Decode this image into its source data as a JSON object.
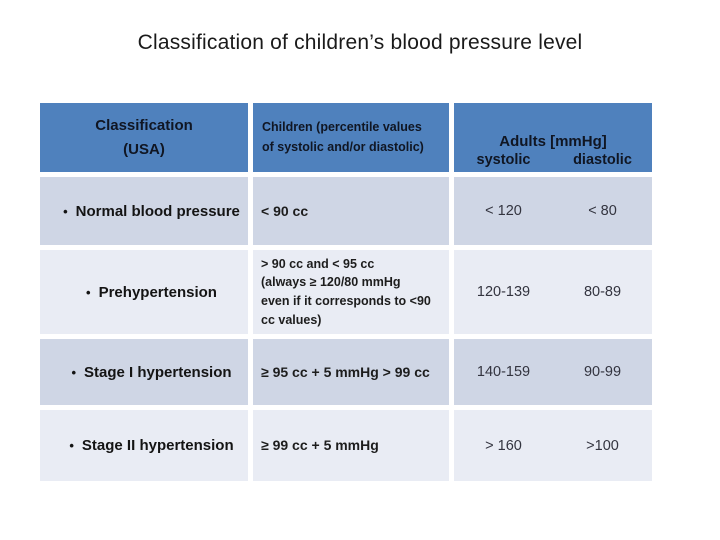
{
  "slide": {
    "title": "Classification of children’s blood pressure level"
  },
  "table": {
    "bullet": "•",
    "header": {
      "classification_line1": "Classification",
      "classification_line2": "(USA)",
      "children_line1": "Children (percentile values",
      "children_line2": "of systolic and/or diastolic)",
      "adults_title": "Adults [mmHg]",
      "adults_sub_systolic": "systolic",
      "adults_sub_diastolic": "diastolic"
    },
    "rows": [
      {
        "classification": "Normal blood pressure",
        "children": "< 90 cc",
        "systolic": "< 120",
        "diastolic": "< 80"
      },
      {
        "classification": "Prehypertension",
        "children": "> 90 cc and < 95 cc\n(always ≥ 120/80 mmHg\neven if it corresponds to <90\ncc values)",
        "systolic": "120-139",
        "diastolic": "80-89"
      },
      {
        "classification": "Stage I hypertension",
        "children": "≥ 95 cc + 5 mmHg > 99 cc",
        "systolic": "140-159",
        "diastolic": "90-99"
      },
      {
        "classification": "Stage II hypertension",
        "children": "≥ 99 cc + 5 mmHg",
        "systolic": "> 160",
        "diastolic": ">100"
      }
    ]
  },
  "colors": {
    "header_bg": "#4f81bd",
    "band_dark": "#cfd6e5",
    "band_light": "#e9ecf4",
    "title_text": "#1a1a1a",
    "header_text": "#101623",
    "body_text": "#1a1a1a"
  }
}
